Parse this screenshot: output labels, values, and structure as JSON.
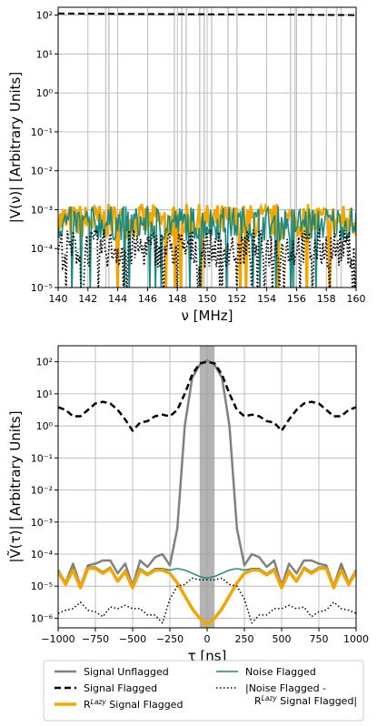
{
  "chart_data": [
    {
      "type": "line",
      "panel": "top",
      "xlabel": "ν [MHz]",
      "ylabel": "|V(ν)| [Arbitrary Units]",
      "xlim": [
        140,
        160
      ],
      "ylim_log10": [
        -5,
        2.2
      ],
      "y_scale": "log",
      "grid": true,
      "x_ticks": [
        140,
        142,
        144,
        146,
        148,
        150,
        152,
        154,
        156,
        158,
        160
      ],
      "x_tick_labels": [
        "140",
        "142",
        "144",
        "146",
        "148",
        "150",
        "152",
        "154",
        "156",
        "158",
        "160"
      ],
      "y_ticks_log10": [
        -5,
        -4,
        -3,
        -2,
        -1,
        0,
        1,
        2
      ],
      "y_tick_labels": [
        "10⁻⁵",
        "10⁻⁴",
        "10⁻³",
        "10⁻²",
        "10⁻¹",
        "10⁰",
        "10¹",
        "10²"
      ],
      "flagged_channels_mhz": [
        143.2,
        143.4,
        147.8,
        148.3,
        148.6,
        149.5,
        149.8,
        150.3,
        151.4,
        152.0,
        155.6,
        155.9,
        157.0,
        158.7,
        159.0
      ],
      "series_log10": [
        {
          "name": "Signal Flagged",
          "color": "#000000",
          "style": "dashed",
          "x": [
            140,
            145,
            150,
            155,
            160
          ],
          "y": [
            2.04,
            2.03,
            2.02,
            2.01,
            2.0
          ]
        }
      ],
      "noise_band_log10": {
        "x_range": [
          140,
          160
        ],
        "center": -3.3,
        "spread": 0.45,
        "floor": -5
      }
    },
    {
      "type": "line",
      "panel": "bottom",
      "xlabel": "τ [ns]",
      "ylabel": "|Ṽ(τ)| [Arbitrary Units]",
      "xlim": [
        -1000,
        1000
      ],
      "ylim_log10": [
        -6.3,
        2.5
      ],
      "y_scale": "log",
      "grid": true,
      "shaded_band_ns": [
        -50,
        50
      ],
      "x_ticks": [
        -1000,
        -750,
        -500,
        -250,
        0,
        250,
        500,
        750,
        1000
      ],
      "x_tick_labels": [
        "−1000",
        "−750",
        "−500",
        "−250",
        "0",
        "250",
        "500",
        "750",
        "1000"
      ],
      "y_ticks_log10": [
        -6,
        -5,
        -4,
        -3,
        -2,
        -1,
        0,
        1,
        2
      ],
      "y_tick_labels": [
        "10⁻⁶",
        "10⁻⁵",
        "10⁻⁴",
        "10⁻³",
        "10⁻²",
        "10⁻¹",
        "10⁰",
        "10¹",
        "10²"
      ],
      "series_log10": [
        {
          "name": "Signal Unflagged",
          "color": "#808080",
          "width": 2.5,
          "style": "solid",
          "x": [
            -1000,
            -950,
            -900,
            -850,
            -800,
            -750,
            -700,
            -650,
            -600,
            -550,
            -500,
            -450,
            -400,
            -350,
            -300,
            -250,
            -200,
            -150,
            -100,
            -50,
            0,
            50,
            100,
            150,
            200,
            250,
            300,
            350,
            400,
            450,
            500,
            550,
            600,
            650,
            700,
            750,
            800,
            850,
            900,
            950,
            1000
          ],
          "y": [
            -4.5,
            -4.9,
            -4.3,
            -5.0,
            -4.35,
            -4.3,
            -4.2,
            -4.2,
            -4.6,
            -4.3,
            -5.0,
            -4.2,
            -4.4,
            -4.1,
            -4.0,
            -4.35,
            -3.2,
            0.0,
            1.5,
            1.9,
            2.05,
            1.9,
            1.5,
            0.0,
            -3.2,
            -4.35,
            -4.0,
            -4.1,
            -4.4,
            -4.2,
            -5.0,
            -4.3,
            -4.6,
            -4.2,
            -4.2,
            -4.3,
            -4.35,
            -5.0,
            -4.3,
            -4.9,
            -4.5
          ]
        },
        {
          "name": "Signal Flagged",
          "color": "#000000",
          "width": 2.5,
          "style": "dashed",
          "x": [
            -1000,
            -950,
            -900,
            -850,
            -800,
            -750,
            -700,
            -650,
            -600,
            -550,
            -500,
            -450,
            -400,
            -350,
            -300,
            -250,
            -200,
            -150,
            -100,
            -50,
            0,
            50,
            100,
            150,
            200,
            250,
            300,
            350,
            400,
            450,
            500,
            550,
            600,
            650,
            700,
            750,
            800,
            850,
            900,
            950,
            1000
          ],
          "y": [
            0.58,
            0.5,
            0.3,
            0.3,
            0.5,
            0.7,
            0.75,
            0.7,
            0.5,
            0.2,
            -0.15,
            0.1,
            0.15,
            0.3,
            0.35,
            0.3,
            0.5,
            1.0,
            1.6,
            1.95,
            2.0,
            1.95,
            1.6,
            1.0,
            0.5,
            0.3,
            0.35,
            0.3,
            0.15,
            0.1,
            -0.15,
            0.2,
            0.5,
            0.7,
            0.75,
            0.7,
            0.5,
            0.3,
            0.3,
            0.5,
            0.58
          ]
        },
        {
          "name": "Noise Flagged",
          "color": "#1a8a80",
          "width": 1.5,
          "style": "solid",
          "x": [
            -1000,
            -950,
            -900,
            -850,
            -800,
            -750,
            -700,
            -650,
            -600,
            -550,
            -500,
            -450,
            -400,
            -350,
            -300,
            -250,
            -200,
            -150,
            -100,
            -50,
            0,
            50,
            100,
            150,
            200,
            250,
            300,
            350,
            400,
            450,
            500,
            550,
            600,
            650,
            700,
            750,
            800,
            850,
            900,
            950,
            1000
          ],
          "y": [
            -4.5,
            -4.9,
            -4.45,
            -5.0,
            -4.4,
            -4.4,
            -4.55,
            -4.4,
            -4.8,
            -4.5,
            -5.0,
            -4.45,
            -4.6,
            -4.45,
            -4.45,
            -4.5,
            -4.45,
            -4.5,
            -4.6,
            -4.7,
            -4.75,
            -4.7,
            -4.6,
            -4.5,
            -4.45,
            -4.5,
            -4.45,
            -4.45,
            -4.6,
            -4.45,
            -5.0,
            -4.5,
            -4.8,
            -4.4,
            -4.55,
            -4.4,
            -4.4,
            -5.0,
            -4.45,
            -4.9,
            -4.5
          ]
        },
        {
          "name": "R^Lazy Signal Flagged",
          "color": "#f5a500",
          "width": 3.5,
          "style": "solid",
          "x": [
            -1000,
            -950,
            -900,
            -850,
            -800,
            -750,
            -700,
            -650,
            -600,
            -550,
            -500,
            -450,
            -400,
            -350,
            -300,
            -250,
            -200,
            -150,
            -100,
            -50,
            0,
            50,
            100,
            150,
            200,
            250,
            300,
            350,
            400,
            450,
            500,
            550,
            600,
            650,
            700,
            750,
            800,
            850,
            900,
            950,
            1000
          ],
          "y": [
            -4.55,
            -4.95,
            -4.5,
            -5.05,
            -4.45,
            -4.45,
            -4.6,
            -4.45,
            -4.85,
            -4.55,
            -5.05,
            -4.5,
            -4.65,
            -4.5,
            -4.5,
            -4.6,
            -4.9,
            -5.3,
            -5.7,
            -6.0,
            -6.2,
            -6.0,
            -5.7,
            -5.3,
            -4.9,
            -4.6,
            -4.5,
            -4.5,
            -4.65,
            -4.5,
            -5.05,
            -4.55,
            -4.85,
            -4.45,
            -4.6,
            -4.45,
            -4.45,
            -5.05,
            -4.5,
            -4.95,
            -4.55
          ]
        },
        {
          "name": "|Noise Flagged - R^Lazy Signal Flagged|",
          "color": "#000000",
          "width": 1.5,
          "style": "dotted",
          "x": [
            -1000,
            -950,
            -900,
            -850,
            -800,
            -750,
            -700,
            -650,
            -600,
            -550,
            -500,
            -450,
            -400,
            -350,
            -300,
            -250,
            -200,
            -150,
            -100,
            -50,
            0,
            50,
            100,
            150,
            200,
            250,
            300,
            350,
            400,
            450,
            500,
            550,
            600,
            650,
            700,
            750,
            800,
            850,
            900,
            950,
            1000
          ],
          "y": [
            -5.85,
            -5.75,
            -5.7,
            -5.5,
            -5.75,
            -5.8,
            -5.95,
            -5.65,
            -5.7,
            -5.6,
            -5.7,
            -5.7,
            -5.9,
            -5.9,
            -6.15,
            -5.4,
            -5.0,
            -4.95,
            -4.75,
            -4.8,
            -4.8,
            -4.8,
            -4.75,
            -4.95,
            -5.0,
            -5.4,
            -6.15,
            -5.9,
            -5.9,
            -5.7,
            -5.7,
            -5.6,
            -5.7,
            -5.65,
            -5.95,
            -5.8,
            -5.75,
            -5.5,
            -5.7,
            -5.75,
            -5.85
          ]
        }
      ]
    }
  ],
  "legend": {
    "placement": "bottom",
    "entries": [
      {
        "label": "Signal Unflagged",
        "color": "#808080",
        "style": "solid",
        "width": 2.5
      },
      {
        "label": "Noise Flagged",
        "color": "#1a8a80",
        "style": "solid",
        "width": 1.5
      },
      {
        "label": "Signal Flagged",
        "color": "#000000",
        "style": "dashed",
        "width": 2.5
      },
      {
        "label": "|Noise Flagged -",
        "label_line2": "R^Lazy Signal Flagged|",
        "color": "#000000",
        "style": "dotted",
        "width": 1.5
      },
      {
        "label": "R^Lazy Signal Flagged",
        "color": "#f5a500",
        "style": "solid",
        "width": 3.5
      }
    ]
  }
}
